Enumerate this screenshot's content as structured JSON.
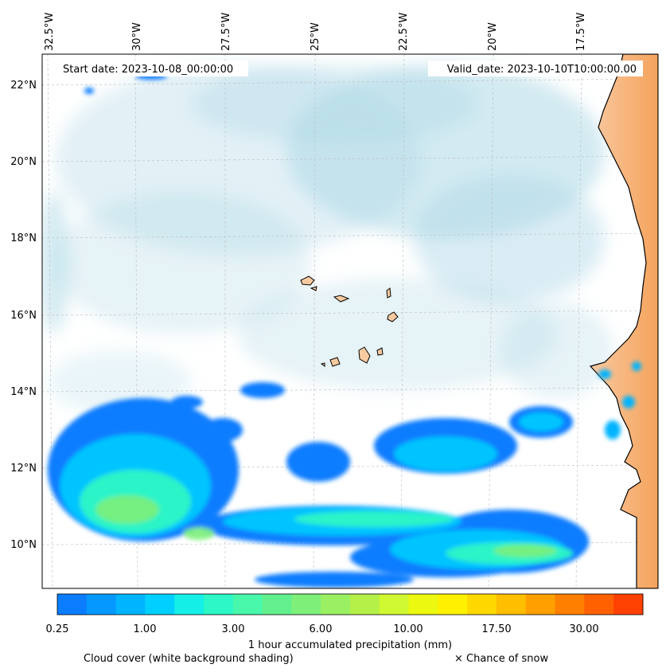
{
  "map": {
    "start_date": "Start date: 2023-10-08_00:00:00",
    "valid_date": "Valid_date: 2023-10-10T10:00:00.00",
    "lon_labels": [
      "32.5°W",
      "30°W",
      "27.5°W",
      "25°W",
      "22.5°W",
      "20°W",
      "17.5°W"
    ],
    "lat_labels": [
      "22°N",
      "20°N",
      "18°N",
      "16°N",
      "14°N",
      "12°N",
      "10°N"
    ],
    "colorbar": {
      "tick_labels": [
        "0.25",
        "1.00",
        "3.00",
        "6.00",
        "10.00",
        "17.50",
        "30.00"
      ],
      "title": "1 hour accumulated precipitation (mm)",
      "colors": [
        "#0a7dff",
        "#0598ff",
        "#00b4ff",
        "#00d0ff",
        "#14f0e8",
        "#2cf7c6",
        "#48f7aa",
        "#62f08e",
        "#7ef07a",
        "#9af062",
        "#b4f048",
        "#d0f830",
        "#ecf810",
        "#fff000",
        "#ffd800",
        "#ffbe00",
        "#ffa000",
        "#ff8000",
        "#ff6000",
        "#ff4000"
      ]
    },
    "legend": {
      "cloud": "Cloud cover (white background shading)",
      "snow": "× Chance of snow"
    },
    "land_color": "#f5a35c",
    "cloud_color": "#add8e6",
    "precip_colors": [
      "#0a7dff",
      "#00c8ff",
      "#2cf7c6",
      "#7ef07a"
    ]
  }
}
